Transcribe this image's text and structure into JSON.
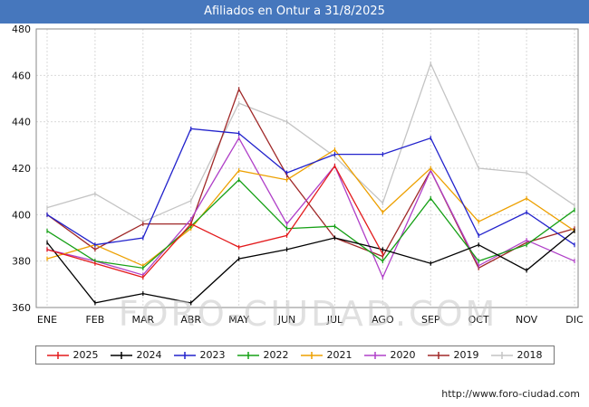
{
  "title_bar": {
    "title": "Afiliados en Ontur a 31/8/2025"
  },
  "watermark": "FORO-CIUDAD.COM",
  "footer": {
    "url": "http://www.foro-ciudad.com"
  },
  "chart_data": {
    "type": "line",
    "title": "Afiliados en Ontur a 31/8/2025",
    "categories": [
      "ENE",
      "FEB",
      "MAR",
      "ABR",
      "MAY",
      "JUN",
      "JUL",
      "AGO",
      "SEP",
      "OCT",
      "NOV",
      "DIC"
    ],
    "ylim": [
      360,
      480
    ],
    "yticks": [
      360,
      380,
      400,
      420,
      440,
      460,
      480
    ],
    "grid": true,
    "legend_position": "bottom",
    "series": [
      {
        "name": "2025",
        "color": "#e31a1c",
        "values": [
          385,
          379,
          373,
          396,
          386,
          391,
          421,
          383
        ]
      },
      {
        "name": "2024",
        "color": "#000000",
        "values": [
          388,
          362,
          366,
          362,
          381,
          385,
          390,
          385,
          379,
          387,
          376,
          393
        ]
      },
      {
        "name": "2023",
        "color": "#2222cc",
        "values": [
          400,
          387,
          390,
          437,
          435,
          418,
          426,
          426,
          433,
          391,
          401,
          387
        ]
      },
      {
        "name": "2022",
        "color": "#16a016",
        "values": [
          393,
          380,
          377,
          395,
          415,
          394,
          395,
          380,
          407,
          380,
          387,
          402
        ]
      },
      {
        "name": "2021",
        "color": "#eda000",
        "values": [
          381,
          387,
          378,
          394,
          419,
          415,
          428,
          401,
          420,
          397,
          407,
          393
        ]
      },
      {
        "name": "2020",
        "color": "#b040c8",
        "values": [
          385,
          380,
          374,
          398,
          433,
          396,
          421,
          373,
          419,
          378,
          389,
          380
        ]
      },
      {
        "name": "2019",
        "color": "#a02828",
        "values": [
          400,
          385,
          396,
          396,
          454,
          417,
          390,
          382,
          419,
          377,
          388,
          394
        ]
      },
      {
        "name": "2018",
        "color": "#c4c4c4",
        "values": [
          403,
          409,
          397,
          406,
          448,
          440,
          425,
          405,
          465,
          420,
          418,
          404
        ]
      }
    ]
  }
}
